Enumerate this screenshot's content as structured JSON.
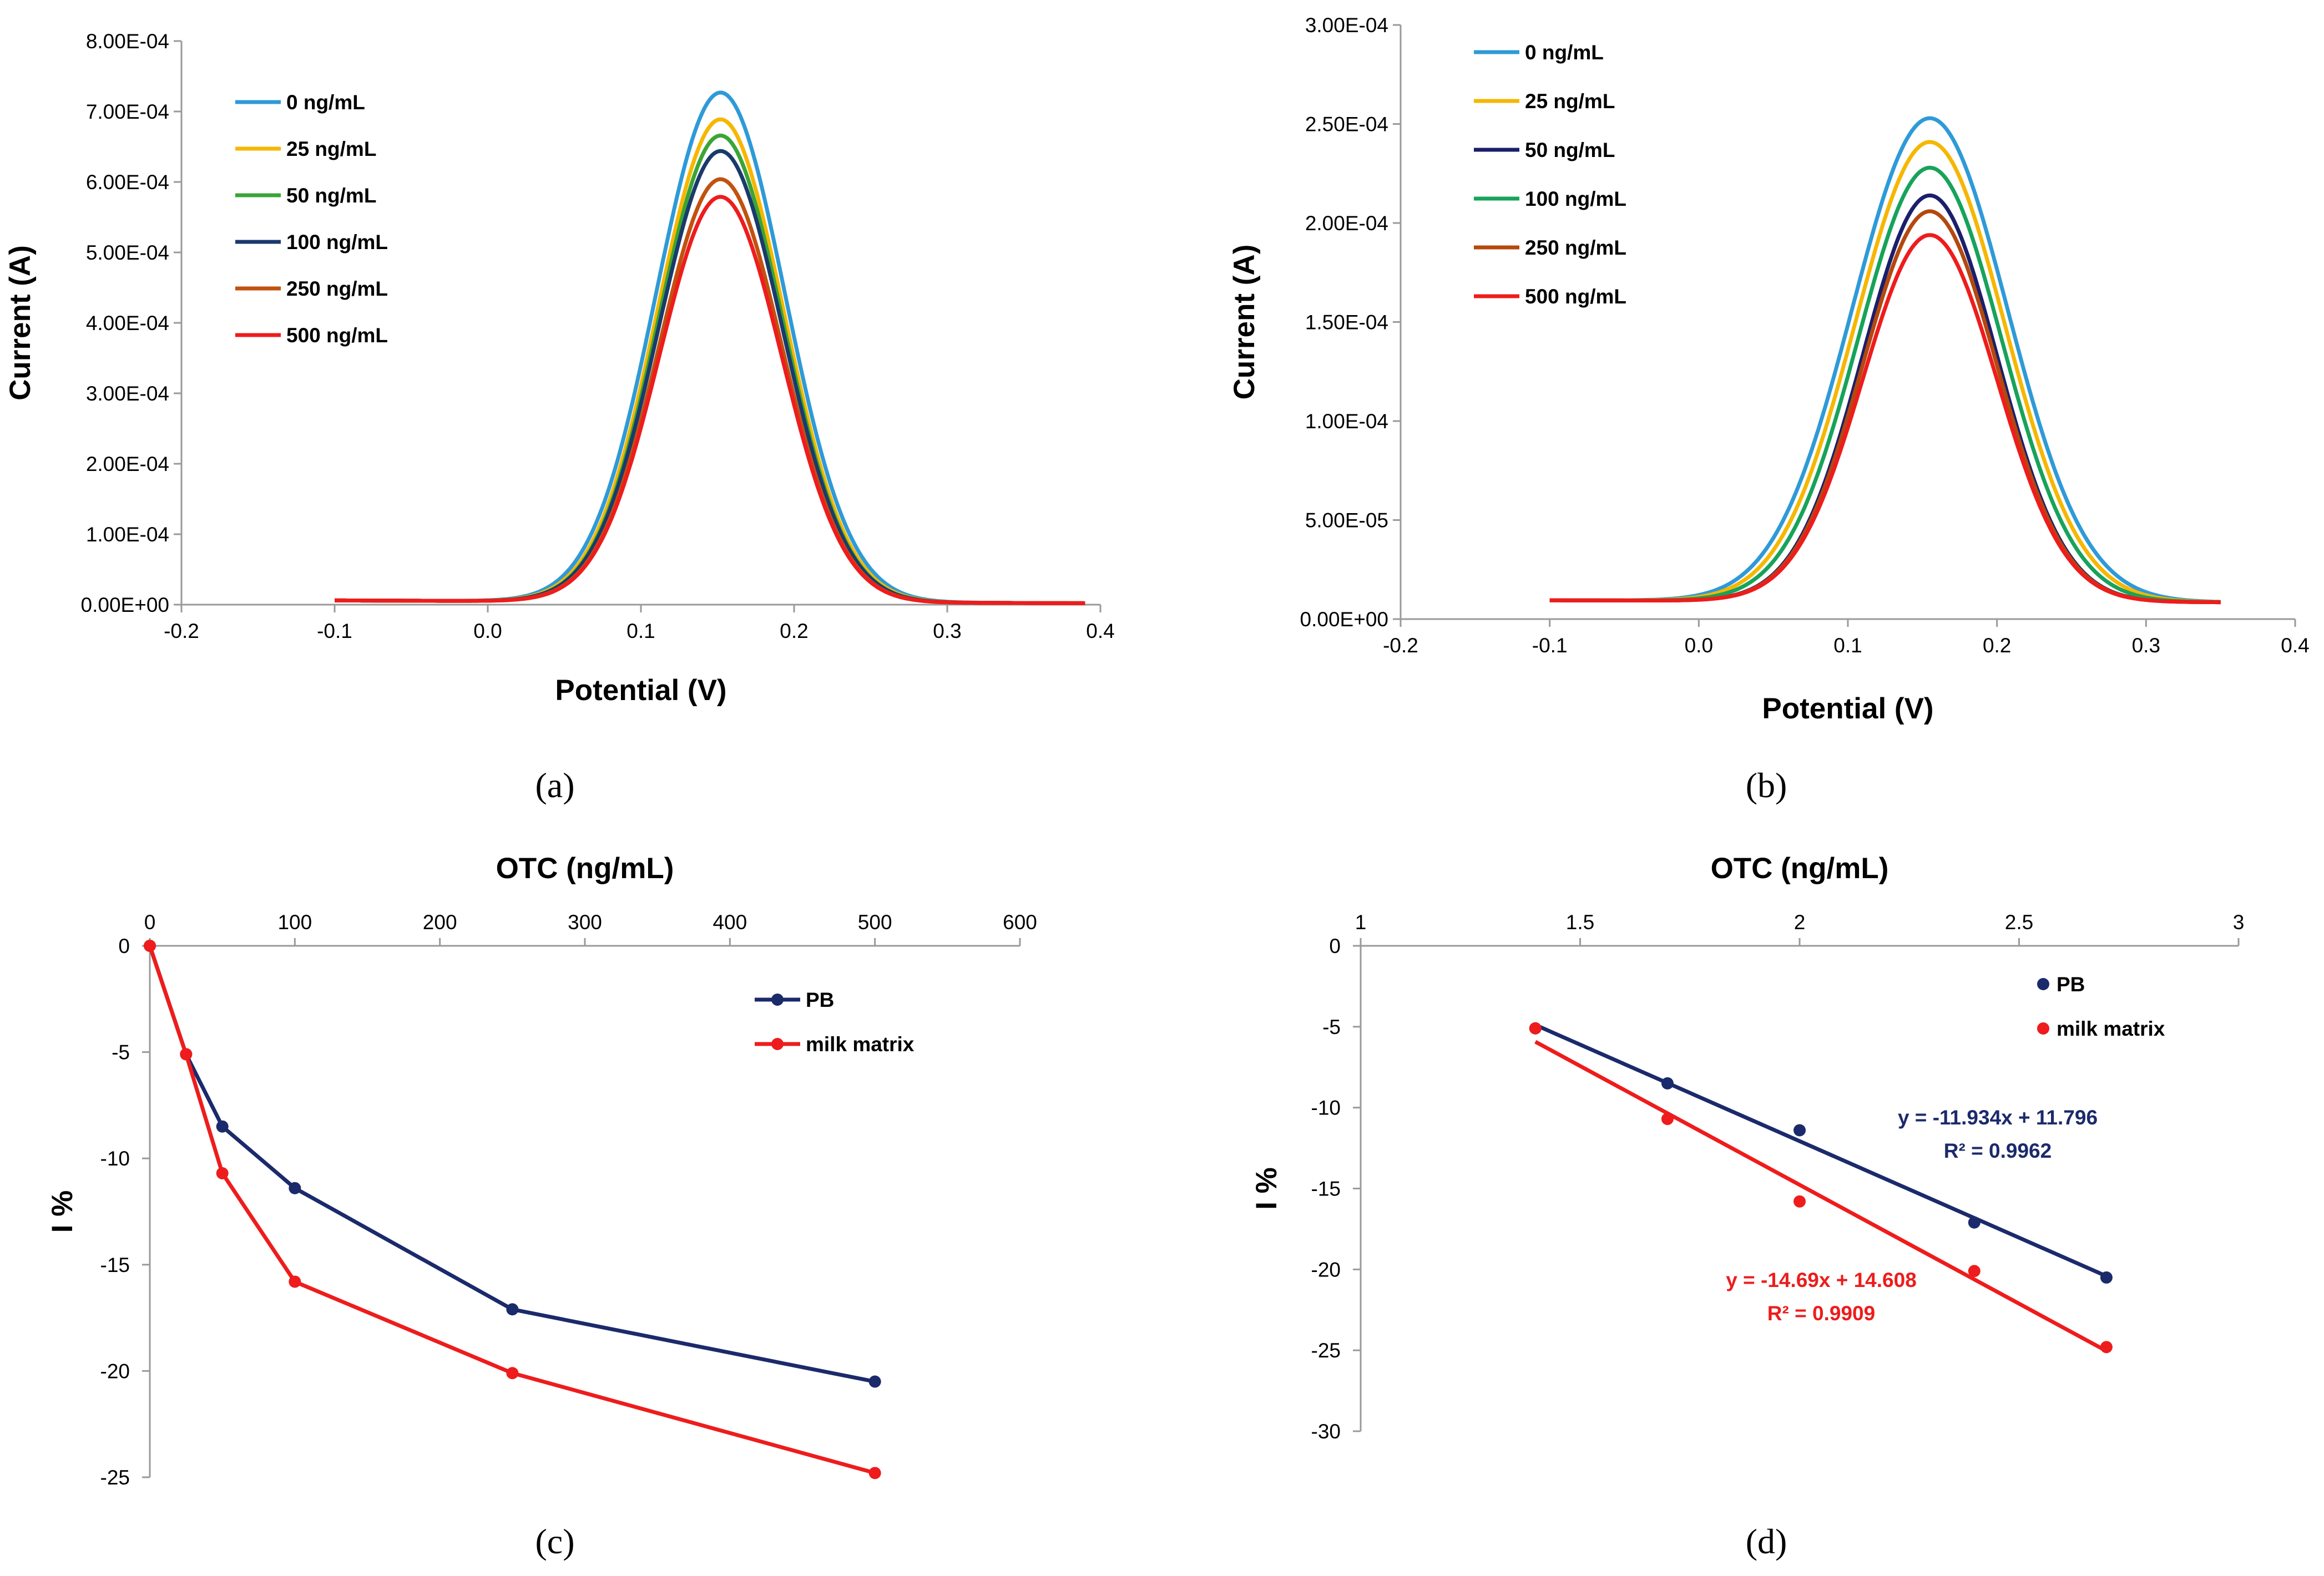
{
  "figure": {
    "panel_labels": [
      "(a)",
      "(b)",
      "(c)",
      "(d)"
    ]
  },
  "chart_data": [
    {
      "id": "a",
      "type": "line",
      "xlabel": "Potential (V)",
      "ylabel": "Current (A)",
      "xlim": [
        -0.2,
        0.4
      ],
      "ylim": [
        0,
        0.0008
      ],
      "x_ticks": [
        "-0.2",
        "-0.1",
        "0.0",
        "0.1",
        "0.2",
        "0.3",
        "0.4"
      ],
      "y_ticks": [
        "0.00E+00",
        "1.00E-04",
        "2.00E-04",
        "3.00E-04",
        "4.00E-04",
        "5.00E-04",
        "6.00E-04",
        "7.00E-04",
        "8.00E-04"
      ],
      "x_range": [
        -0.1,
        0.39
      ],
      "baseline_start": 6e-06,
      "baseline_end": 2e-06,
      "series": [
        {
          "name": "0 ng/mL",
          "color": "#2e9ad8",
          "peak_x": 0.152,
          "peak": 0.000723,
          "width": 0.042
        },
        {
          "name": "25 ng/mL",
          "color": "#f6b700",
          "peak_x": 0.152,
          "peak": 0.000685,
          "width": 0.041
        },
        {
          "name": "50 ng/mL",
          "color": "#3aa535",
          "peak_x": 0.152,
          "peak": 0.000662,
          "width": 0.0405
        },
        {
          "name": "100 ng/mL",
          "color": "#1a3a6c",
          "peak_x": 0.152,
          "peak": 0.00064,
          "width": 0.0405
        },
        {
          "name": "250 ng/mL",
          "color": "#c2510f",
          "peak_x": 0.152,
          "peak": 0.0006,
          "width": 0.04
        },
        {
          "name": "500 ng/mL",
          "color": "#ee1c1c",
          "peak_x": 0.152,
          "peak": 0.000575,
          "width": 0.04
        }
      ]
    },
    {
      "id": "b",
      "type": "line",
      "xlabel": "Potential (V)",
      "ylabel": "Current (A)",
      "xlim": [
        -0.2,
        0.4
      ],
      "ylim": [
        0,
        0.0003
      ],
      "x_ticks": [
        "-0.2",
        "-0.1",
        "0.0",
        "0.1",
        "0.2",
        "0.3",
        "0.4"
      ],
      "y_ticks": [
        "0.00E+00",
        "5.00E-05",
        "1.00E-04",
        "1.50E-04",
        "2.00E-04",
        "2.50E-04",
        "3.00E-04"
      ],
      "x_range": [
        -0.1,
        0.35
      ],
      "baseline_start": 9.5e-06,
      "baseline_end": 8.5e-06,
      "series": [
        {
          "name": "0 ng/mL",
          "color": "#2e9ad8",
          "peak_x": 0.155,
          "peak": 0.000244,
          "width": 0.052
        },
        {
          "name": "25 ng/mL",
          "color": "#f6b700",
          "peak_x": 0.155,
          "peak": 0.000232,
          "width": 0.05
        },
        {
          "name": "50 ng/mL",
          "color": "#1b1f6b",
          "peak_x": 0.155,
          "peak": 0.000205,
          "width": 0.045
        },
        {
          "name": "100 ng/mL",
          "color": "#17a35a",
          "peak_x": 0.155,
          "peak": 0.000219,
          "width": 0.048
        },
        {
          "name": "250 ng/mL",
          "color": "#b5480e",
          "peak_x": 0.155,
          "peak": 0.000197,
          "width": 0.045
        },
        {
          "name": "500 ng/mL",
          "color": "#ee1c1c",
          "peak_x": 0.155,
          "peak": 0.000185,
          "width": 0.045
        }
      ]
    },
    {
      "id": "c",
      "type": "line",
      "xlabel": "OTC (ng/mL)",
      "ylabel": "I %",
      "xlim": [
        0,
        600
      ],
      "ylim": [
        -25,
        0
      ],
      "x_ticks": [
        "0",
        "100",
        "200",
        "300",
        "400",
        "500",
        "600"
      ],
      "y_ticks": [
        "0",
        "-5",
        "-10",
        "-15",
        "-20",
        "-25"
      ],
      "series": [
        {
          "name": "PB",
          "color": "#1b2a6b",
          "x": [
            0,
            25,
            50,
            100,
            250,
            500
          ],
          "y": [
            0,
            -5.1,
            -8.5,
            -11.4,
            -17.1,
            -20.5
          ]
        },
        {
          "name": "milk matrix",
          "color": "#ee1c1c",
          "x": [
            0,
            25,
            50,
            100,
            250,
            500
          ],
          "y": [
            0,
            -5.1,
            -10.7,
            -15.8,
            -20.1,
            -24.8
          ]
        }
      ]
    },
    {
      "id": "d",
      "type": "scatter",
      "xlabel": "OTC (ng/mL)",
      "ylabel": "I %",
      "xlim": [
        1,
        3
      ],
      "ylim": [
        -30,
        0
      ],
      "x_ticks": [
        "1",
        "1.5",
        "2",
        "2.5",
        "3"
      ],
      "y_ticks": [
        "0",
        "-5",
        "-10",
        "-15",
        "-20",
        "-25",
        "-30"
      ],
      "series": [
        {
          "name": "PB",
          "color": "#1b2a6b",
          "x": [
            1.398,
            1.699,
            2.0,
            2.398,
            2.699
          ],
          "y": [
            -5.1,
            -8.5,
            -11.4,
            -17.1,
            -20.5
          ],
          "fit": {
            "slope": -11.934,
            "intercept": 11.796
          },
          "equation": "y = -11.934x + 11.796",
          "r2": "R² = 0.9962"
        },
        {
          "name": "milk matrix",
          "color": "#ee1c1c",
          "x": [
            1.398,
            1.699,
            2.0,
            2.398,
            2.699
          ],
          "y": [
            -5.1,
            -10.7,
            -15.8,
            -20.1,
            -24.8
          ],
          "fit": {
            "slope": -14.69,
            "intercept": 14.608
          },
          "equation": "y = -14.69x + 14.608",
          "r2": "R² = 0.9909"
        }
      ]
    }
  ]
}
